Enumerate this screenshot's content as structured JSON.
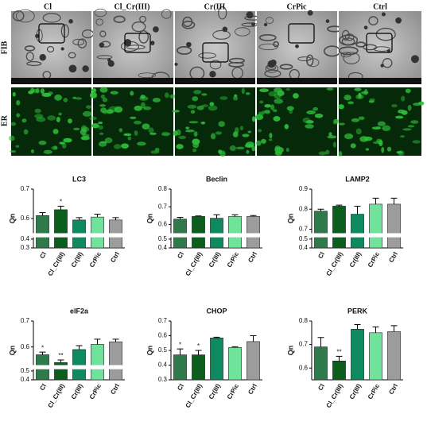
{
  "figure": {
    "columns": [
      "Cl",
      "Cl_Cr(III)",
      "Cr(III",
      "CrPic",
      "Ctrl"
    ],
    "rows": [
      "FIB",
      "ER"
    ]
  },
  "chart_data": [
    {
      "type": "bar",
      "title": "LC3",
      "ylabel": "Qn",
      "categories": [
        "Cl",
        "Cl_Cr(III)",
        "Cr(III)",
        "CrPic",
        "Ctrl"
      ],
      "values": [
        0.61,
        0.63,
        0.595,
        0.605,
        0.595
      ],
      "errors": [
        0.01,
        0.012,
        0.008,
        0.01,
        0.008
      ],
      "colors": [
        "#2f7a4a",
        "#0b5e1c",
        "#0f8a5e",
        "#6fe39a",
        "#9c9c9c"
      ],
      "ylim": [
        0.3,
        0.7
      ],
      "ybreak": [
        0.42,
        0.55
      ],
      "yticks": [
        0.3,
        0.4,
        0.6,
        0.7
      ],
      "annotations": [
        {
          "index": 1,
          "text": "*"
        }
      ]
    },
    {
      "type": "bar",
      "title": "Beclin",
      "ylabel": "Qn",
      "categories": [
        "Cl",
        "Cl_Cr(III)",
        "Cr(III)",
        "CrPic",
        "Ctrl"
      ],
      "values": [
        0.63,
        0.645,
        0.635,
        0.645,
        0.645
      ],
      "errors": [
        0.01,
        0.003,
        0.02,
        0.01,
        0.005
      ],
      "colors": [
        "#2f7a4a",
        "#0b5e1c",
        "#0f8a5e",
        "#6fe39a",
        "#9c9c9c"
      ],
      "ylim": [
        0.4,
        0.8
      ],
      "ybreak": [
        0.52,
        0.55
      ],
      "yticks": [
        0.4,
        0.5,
        0.6,
        0.7,
        0.8
      ]
    },
    {
      "type": "bar",
      "title": "LAMP2",
      "ylabel": "Qn",
      "categories": [
        "Cl",
        "Cl_Cr(III)",
        "Cr(III)",
        "CrPic",
        "Ctrl"
      ],
      "values": [
        0.79,
        0.815,
        0.775,
        0.825,
        0.825
      ],
      "errors": [
        0.01,
        0.005,
        0.04,
        0.03,
        0.03
      ],
      "colors": [
        "#2f7a4a",
        "#0b5e1c",
        "#0f8a5e",
        "#6fe39a",
        "#9c9c9c"
      ],
      "ylim": [
        0.4,
        0.9
      ],
      "ybreak": [
        0.52,
        0.68
      ],
      "yticks": [
        0.4,
        0.5,
        0.7,
        0.8,
        0.9
      ]
    },
    {
      "type": "bar",
      "title": "eIF2a",
      "ylabel": "Qn",
      "categories": [
        "Cl",
        "Cl_Cr(III)",
        "Cr(III)",
        "CrPic",
        "Ctrl"
      ],
      "values": [
        0.57,
        0.54,
        0.59,
        0.61,
        0.62
      ],
      "errors": [
        0.01,
        0.01,
        0.015,
        0.02,
        0.01
      ],
      "colors": [
        "#2f7a4a",
        "#0b5e1c",
        "#0f8a5e",
        "#6fe39a",
        "#9c9c9c"
      ],
      "ylim": [
        0.4,
        0.7
      ],
      "ybreak": [
        0.52,
        0.53
      ],
      "yticks": [
        0.4,
        0.5,
        0.6,
        0.7
      ],
      "annotations": [
        {
          "index": 0,
          "text": "*"
        },
        {
          "index": 1,
          "text": "**"
        }
      ]
    },
    {
      "type": "bar",
      "title": "CHOP",
      "ylabel": "Qn",
      "categories": [
        "Cl",
        "Cl_Cr(III)",
        "Cr(III)",
        "CrPic",
        "Ctrl"
      ],
      "values": [
        0.47,
        0.47,
        0.585,
        0.52,
        0.56
      ],
      "errors": [
        0.04,
        0.03,
        0.005,
        0.005,
        0.04
      ],
      "colors": [
        "#2f7a4a",
        "#0b5e1c",
        "#0f8a5e",
        "#6fe39a",
        "#9c9c9c"
      ],
      "ylim": [
        0.3,
        0.7
      ],
      "yticks": [
        0.3,
        0.4,
        0.5,
        0.6,
        0.7
      ],
      "annotations": [
        {
          "index": 0,
          "text": "*"
        },
        {
          "index": 1,
          "text": "*"
        }
      ]
    },
    {
      "type": "bar",
      "title": "PERK",
      "ylabel": "Qn",
      "categories": [
        "Cl",
        "Cl_Cr(III)",
        "Cr(III)",
        "CrPic",
        "Ctrl"
      ],
      "values": [
        0.69,
        0.63,
        0.765,
        0.75,
        0.755
      ],
      "errors": [
        0.04,
        0.02,
        0.02,
        0.025,
        0.025
      ],
      "colors": [
        "#2f7a4a",
        "#0b5e1c",
        "#0f8a5e",
        "#6fe39a",
        "#9c9c9c"
      ],
      "ylim": [
        0.55,
        0.8
      ],
      "yticks": [
        0.6,
        0.7,
        0.8
      ],
      "annotations": [
        {
          "index": 1,
          "text": "**"
        }
      ]
    }
  ]
}
